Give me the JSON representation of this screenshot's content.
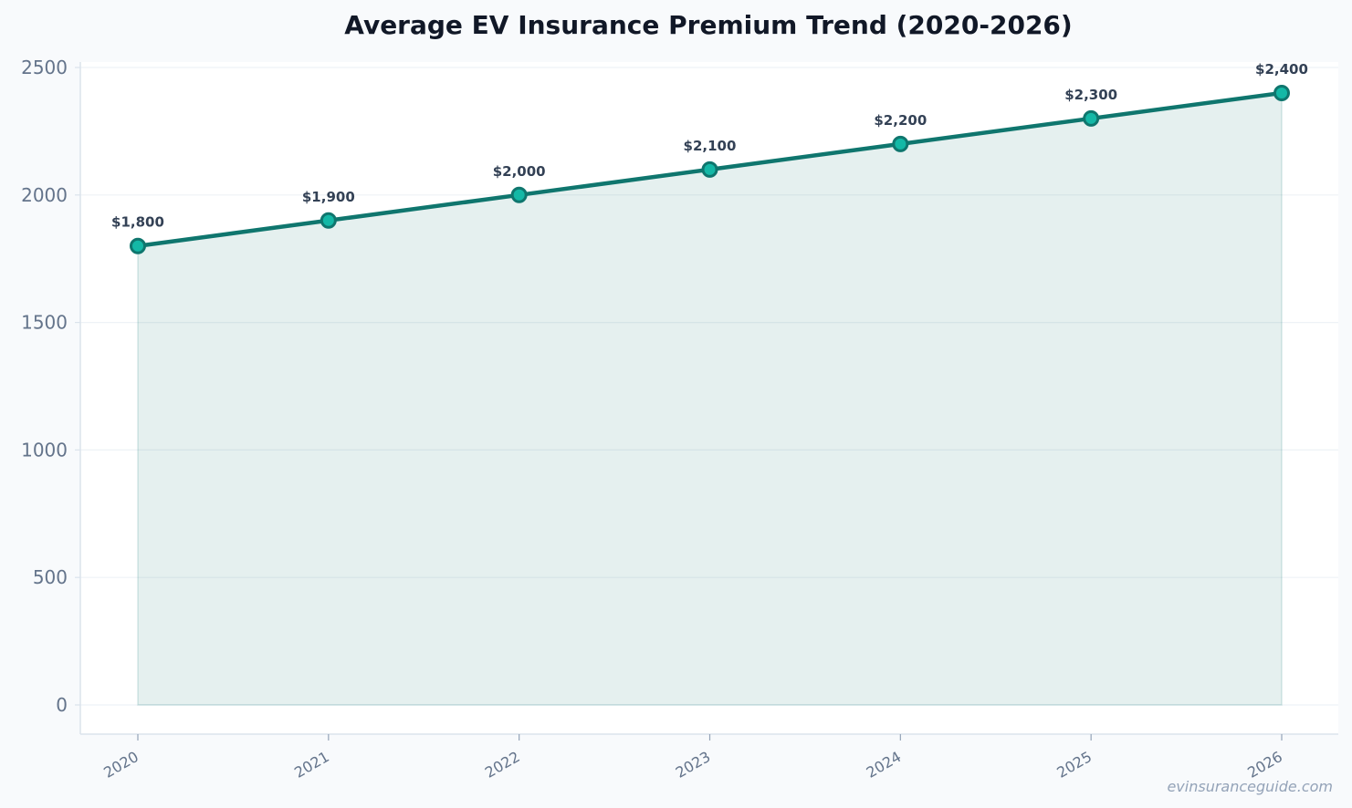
{
  "chart_data": {
    "type": "area",
    "title": "Average EV Insurance Premium Trend (2020-2026)",
    "xlabel": "",
    "ylabel": "",
    "categories": [
      "2020",
      "2021",
      "2022",
      "2023",
      "2024",
      "2025",
      "2026"
    ],
    "series": [
      {
        "values": [
          1800,
          1900,
          2000,
          2100,
          2200,
          2300,
          2400
        ],
        "data_labels": [
          "$1,800",
          "$1,900",
          "$2,000",
          "$2,100",
          "$2,200",
          "$2,300",
          "$2,400"
        ]
      }
    ],
    "ylim": [
      0,
      2500
    ],
    "yticks": [
      0,
      500,
      1000,
      1500,
      2000,
      2500
    ],
    "grid": true,
    "legend": "none",
    "colors": {
      "line": "#0f766e",
      "marker_fill": "#14b8a6",
      "area_fill": "#0f766e",
      "grid": "#eef2f6",
      "axis": "#dbe3ec"
    }
  },
  "watermark": "evinsuranceguide.com"
}
